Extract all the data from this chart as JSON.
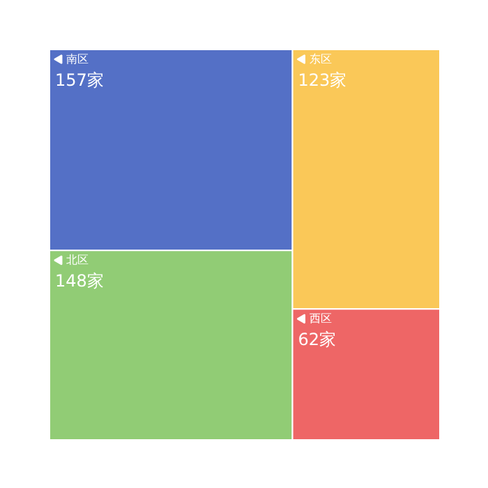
{
  "chart_data": {
    "type": "other",
    "categories": [
      "南区",
      "北区",
      "东区",
      "西区"
    ],
    "values": [
      157,
      148,
      123,
      62
    ],
    "value_labels": [
      "157家",
      "148家",
      "123家",
      "62家"
    ],
    "colors": [
      "#5470c6",
      "#91cc75",
      "#fac858",
      "#ee6666"
    ]
  }
}
